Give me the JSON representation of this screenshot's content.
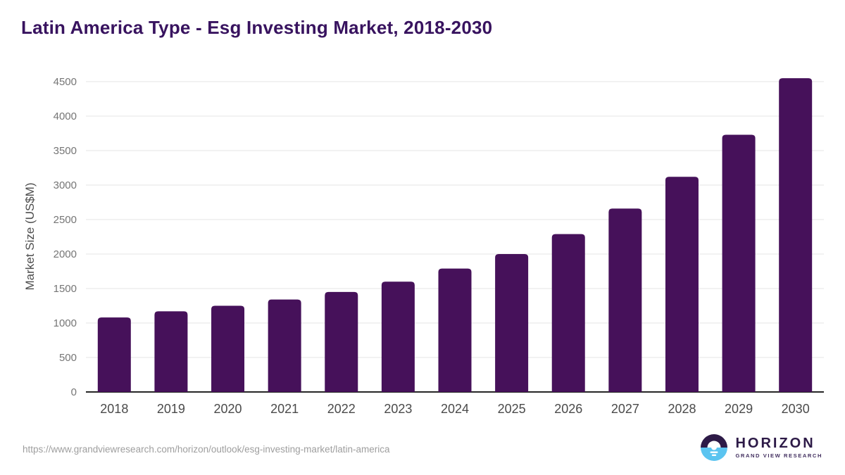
{
  "header": {
    "title": "Latin America Type - Esg Investing Market, 2018-2030"
  },
  "chart_data": {
    "type": "bar",
    "title": "Latin America Type - Esg Investing Market, 2018-2030",
    "categories": [
      "2018",
      "2019",
      "2020",
      "2021",
      "2022",
      "2023",
      "2024",
      "2025",
      "2026",
      "2027",
      "2028",
      "2029",
      "2030"
    ],
    "values": [
      1080,
      1170,
      1250,
      1340,
      1450,
      1600,
      1790,
      2000,
      2290,
      2660,
      3120,
      3730,
      4550
    ],
    "xlabel": "",
    "ylabel": "Market Size (US$M)",
    "ylim": [
      0,
      4500
    ],
    "ytick_step": 500,
    "grid": true,
    "legend": "none",
    "bar_color": "#46115a"
  },
  "footer": {
    "source_url": "https://www.grandviewresearch.com/horizon/outlook/esg-investing-market/latin-america",
    "logo": {
      "brand": "HORIZON",
      "sub_brand": "GRAND VIEW RESEARCH"
    }
  },
  "colors": {
    "title": "#38135f",
    "bar": "#46115a",
    "gridline": "#e6e6e6",
    "axis_line": "#262626",
    "ytick_label": "#757575",
    "xtick_label": "#4a4a4a",
    "url_text": "#9e9e9e",
    "logo_dark": "#2d1a47",
    "logo_blue": "#5bc4f0",
    "logo_sub_text": "#433060"
  }
}
